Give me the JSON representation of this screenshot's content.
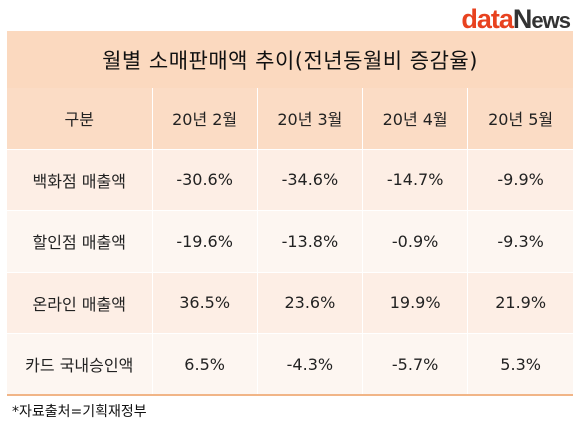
{
  "brand": {
    "logo_part1": "data",
    "logo_part2": "N",
    "logo_part3": "ews",
    "accent": "#e8421f"
  },
  "chart_data": {
    "type": "table",
    "title": "월별 소매판매액 추이(전년동월비 증감율)",
    "columns": [
      "구분",
      "20년 2월",
      "20년 3월",
      "20년 4월",
      "20년 5월"
    ],
    "rows": [
      {
        "label": "백화점 매출액",
        "values": [
          "-30.6%",
          "-34.6%",
          "-14.7%",
          "-9.9%"
        ]
      },
      {
        "label": "할인점 매출액",
        "values": [
          "-19.6%",
          "-13.8%",
          "-0.9%",
          "-9.3%"
        ]
      },
      {
        "label": "온라인 매출액",
        "values": [
          "36.5%",
          "23.6%",
          "19.9%",
          "21.9%"
        ]
      },
      {
        "label": "카드 국내승인액",
        "values": [
          "6.5%",
          "-4.3%",
          "-5.7%",
          "5.3%"
        ]
      }
    ],
    "source": "*자료출처=기획재정부"
  },
  "colors": {
    "header_bg": "#fbdcc5",
    "title_bg": "#fbd9bf",
    "row_odd": "#fdeee5",
    "row_even": "#fdf6f1"
  }
}
